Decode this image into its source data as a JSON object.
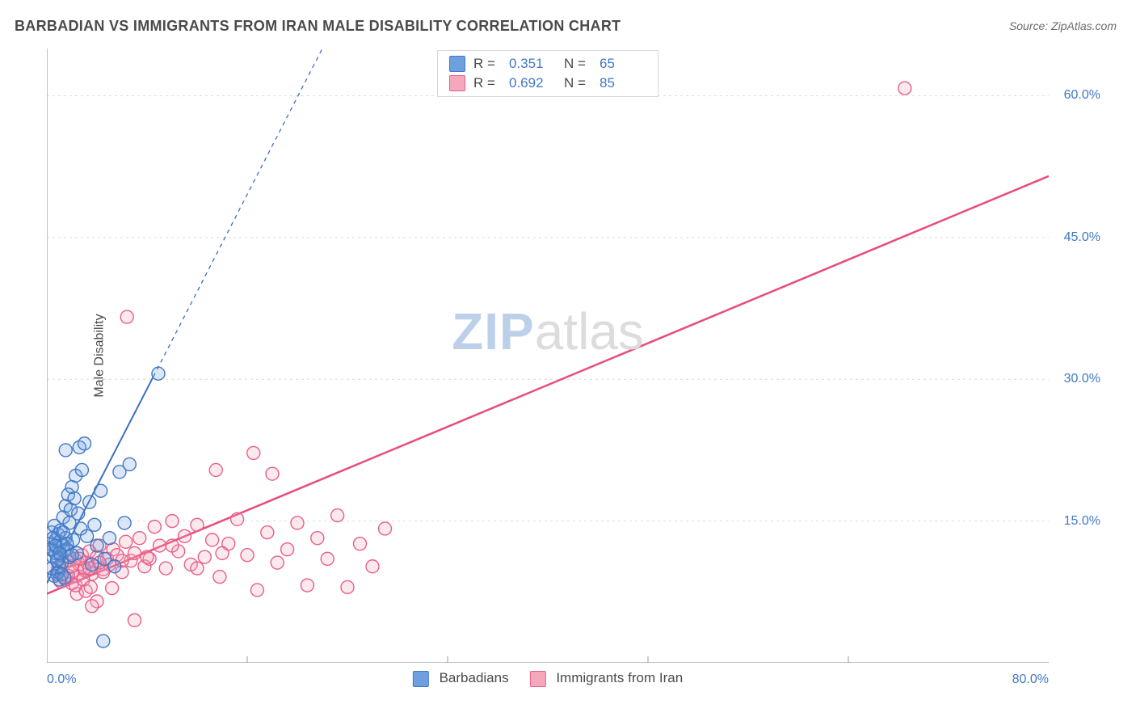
{
  "title": "BARBADIAN VS IMMIGRANTS FROM IRAN MALE DISABILITY CORRELATION CHART",
  "source": "Source: ZipAtlas.com",
  "watermark": {
    "zip": "ZIP",
    "atlas": "atlas"
  },
  "chart": {
    "type": "scatter",
    "y_axis_label": "Male Disability",
    "background_color": "#ffffff",
    "axis_color": "#9a9a9a",
    "grid_color": "#dcdcdc",
    "tick_label_color": "#4178c4",
    "xlim": [
      0,
      80
    ],
    "ylim": [
      0,
      65
    ],
    "yticks": [
      15,
      30,
      45,
      60
    ],
    "ytick_labels": [
      "15.0%",
      "30.0%",
      "45.0%",
      "60.0%"
    ],
    "xticks_minor": [
      16,
      32,
      48,
      64
    ],
    "xtick_left": "0.0%",
    "xtick_right": "80.0%",
    "marker_radius": 8,
    "marker_stroke_width": 1.4,
    "marker_fill_opacity": 0.25,
    "series": [
      {
        "key": "barbadians",
        "name": "Barbadians",
        "color": "#6ea0e0",
        "stroke": "#4178c4",
        "R": "0.351",
        "N": "65",
        "trend": {
          "solid_to_x": 8.5,
          "x1": 0,
          "y1": 8.4,
          "x2": 22,
          "y2": 65,
          "color": "#3a6fc0",
          "dash": "5,5",
          "width": 2
        },
        "points": [
          [
            0.3,
            12.6
          ],
          [
            0.4,
            13.8
          ],
          [
            0.5,
            11.2
          ],
          [
            0.5,
            12.0
          ],
          [
            0.6,
            14.5
          ],
          [
            0.7,
            11.6
          ],
          [
            0.7,
            13.0
          ],
          [
            0.8,
            9.4
          ],
          [
            0.8,
            12.2
          ],
          [
            0.9,
            11.0
          ],
          [
            0.9,
            13.6
          ],
          [
            1.0,
            10.2
          ],
          [
            1.0,
            12.8
          ],
          [
            1.1,
            11.4
          ],
          [
            1.1,
            14.0
          ],
          [
            1.2,
            10.6
          ],
          [
            1.3,
            12.4
          ],
          [
            1.3,
            15.4
          ],
          [
            1.4,
            11.8
          ],
          [
            1.5,
            13.2
          ],
          [
            1.5,
            16.6
          ],
          [
            1.6,
            12.0
          ],
          [
            1.7,
            17.8
          ],
          [
            1.8,
            11.2
          ],
          [
            1.8,
            14.8
          ],
          [
            1.9,
            16.2
          ],
          [
            2.0,
            18.6
          ],
          [
            2.1,
            13.0
          ],
          [
            2.2,
            17.4
          ],
          [
            2.3,
            19.8
          ],
          [
            2.4,
            11.6
          ],
          [
            2.5,
            15.8
          ],
          [
            2.6,
            22.8
          ],
          [
            2.7,
            14.2
          ],
          [
            2.8,
            20.4
          ],
          [
            3.0,
            23.2
          ],
          [
            3.2,
            13.4
          ],
          [
            3.4,
            17.0
          ],
          [
            3.6,
            10.4
          ],
          [
            3.8,
            14.6
          ],
          [
            4.0,
            12.4
          ],
          [
            4.3,
            18.2
          ],
          [
            4.6,
            11.0
          ],
          [
            5.0,
            13.2
          ],
          [
            5.4,
            10.2
          ],
          [
            5.8,
            20.2
          ],
          [
            6.2,
            14.8
          ],
          [
            6.6,
            21.0
          ],
          [
            0.4,
            10.0
          ],
          [
            0.6,
            9.2
          ],
          [
            0.9,
            9.6
          ],
          [
            1.2,
            9.4
          ],
          [
            1.0,
            8.8
          ],
          [
            1.4,
            9.0
          ],
          [
            0.8,
            10.8
          ],
          [
            4.5,
            2.3
          ],
          [
            0.3,
            12.0
          ],
          [
            0.5,
            13.2
          ],
          [
            0.7,
            12.4
          ],
          [
            1.0,
            11.6
          ],
          [
            1.3,
            13.8
          ],
          [
            1.6,
            12.6
          ],
          [
            2.0,
            11.4
          ],
          [
            8.9,
            30.6
          ],
          [
            1.5,
            22.5
          ]
        ]
      },
      {
        "key": "iran",
        "name": "Immigrants from Iran",
        "color": "#f5a7bc",
        "stroke": "#e85f8a",
        "R": "0.692",
        "N": "85",
        "trend": {
          "x1": 0,
          "y1": 7.3,
          "x2": 80,
          "y2": 51.5,
          "color": "#e84c7a",
          "width": 2.5
        },
        "points": [
          [
            0.9,
            10.0
          ],
          [
            1.2,
            9.3
          ],
          [
            1.4,
            10.5
          ],
          [
            1.6,
            9.0
          ],
          [
            1.8,
            10.8
          ],
          [
            2.0,
            9.6
          ],
          [
            2.2,
            11.0
          ],
          [
            2.4,
            9.2
          ],
          [
            2.6,
            10.4
          ],
          [
            2.8,
            11.4
          ],
          [
            3.0,
            9.8
          ],
          [
            3.2,
            10.6
          ],
          [
            3.4,
            11.8
          ],
          [
            3.6,
            9.4
          ],
          [
            3.8,
            10.2
          ],
          [
            4.0,
            11.2
          ],
          [
            4.2,
            12.4
          ],
          [
            4.5,
            9.9
          ],
          [
            4.8,
            11.0
          ],
          [
            5.0,
            10.4
          ],
          [
            5.3,
            12.0
          ],
          [
            5.6,
            11.4
          ],
          [
            6.0,
            9.6
          ],
          [
            6.3,
            12.8
          ],
          [
            6.7,
            10.8
          ],
          [
            7.0,
            11.6
          ],
          [
            7.4,
            13.2
          ],
          [
            7.8,
            10.2
          ],
          [
            8.2,
            11.0
          ],
          [
            8.6,
            14.4
          ],
          [
            9.0,
            12.4
          ],
          [
            9.5,
            10.0
          ],
          [
            10.0,
            15.0
          ],
          [
            10.5,
            11.8
          ],
          [
            11.0,
            13.4
          ],
          [
            11.5,
            10.4
          ],
          [
            12.0,
            14.6
          ],
          [
            12.6,
            11.2
          ],
          [
            13.2,
            13.0
          ],
          [
            13.8,
            9.1
          ],
          [
            14.5,
            12.6
          ],
          [
            15.2,
            15.2
          ],
          [
            16.0,
            11.4
          ],
          [
            16.8,
            7.7
          ],
          [
            17.6,
            13.8
          ],
          [
            18.4,
            10.6
          ],
          [
            19.2,
            12.0
          ],
          [
            20.0,
            14.8
          ],
          [
            20.8,
            8.2
          ],
          [
            21.6,
            13.2
          ],
          [
            22.4,
            11.0
          ],
          [
            23.2,
            15.6
          ],
          [
            24.0,
            8.0
          ],
          [
            25.0,
            12.6
          ],
          [
            26.0,
            10.2
          ],
          [
            27.0,
            14.2
          ],
          [
            2.4,
            7.3
          ],
          [
            3.1,
            7.6
          ],
          [
            4.0,
            6.5
          ],
          [
            5.2,
            7.9
          ],
          [
            3.6,
            6.0
          ],
          [
            7.0,
            4.5
          ],
          [
            2.0,
            8.4
          ],
          [
            1.5,
            8.8
          ],
          [
            1.1,
            8.6
          ],
          [
            1.7,
            9.2
          ],
          [
            2.3,
            8.2
          ],
          [
            2.9,
            8.8
          ],
          [
            3.5,
            8.0
          ],
          [
            6.4,
            36.6
          ],
          [
            13.5,
            20.4
          ],
          [
            16.5,
            22.2
          ],
          [
            3.0,
            10.0
          ],
          [
            4.5,
            9.6
          ],
          [
            6.0,
            10.8
          ],
          [
            8.0,
            11.2
          ],
          [
            10.0,
            12.4
          ],
          [
            12.0,
            10.0
          ],
          [
            14.0,
            11.6
          ],
          [
            18.0,
            20.0
          ],
          [
            68.5,
            60.8
          ],
          [
            2.0,
            10.2
          ],
          [
            2.6,
            11.0
          ],
          [
            3.4,
            10.0
          ],
          [
            4.2,
            10.6
          ]
        ]
      }
    ],
    "legend_top": {
      "R_label": "R  =",
      "N_label": "N  ="
    },
    "legend_bottom_order": [
      "barbadians",
      "iran"
    ]
  }
}
